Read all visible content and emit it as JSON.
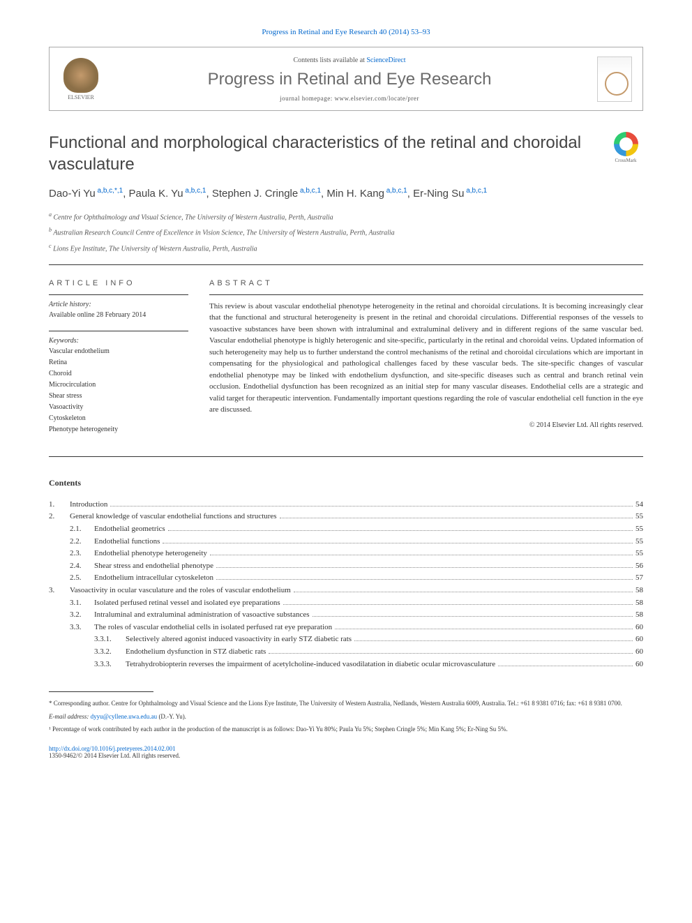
{
  "journal_ref": "Progress in Retinal and Eye Research 40 (2014) 53–93",
  "header": {
    "contents_text": "Contents lists available at ",
    "contents_link": "ScienceDirect",
    "journal_name": "Progress in Retinal and Eye Research",
    "homepage_label": "journal homepage: ",
    "homepage_url": "www.elsevier.com/locate/prer",
    "publisher": "ELSEVIER"
  },
  "crossmark_label": "CrossMark",
  "title": "Functional and morphological characteristics of the retinal and choroidal vasculature",
  "authors": [
    {
      "name": "Dao-Yi Yu",
      "affil": "a,b,c,*,1"
    },
    {
      "name": "Paula K. Yu",
      "affil": "a,b,c,1"
    },
    {
      "name": "Stephen J. Cringle",
      "affil": "a,b,c,1"
    },
    {
      "name": "Min H. Kang",
      "affil": "a,b,c,1"
    },
    {
      "name": "Er-Ning Su",
      "affil": "a,b,c,1"
    }
  ],
  "affiliations": [
    {
      "sup": "a",
      "text": "Centre for Ophthalmology and Visual Science, The University of Western Australia, Perth, Australia"
    },
    {
      "sup": "b",
      "text": "Australian Research Council Centre of Excellence in Vision Science, The University of Western Australia, Perth, Australia"
    },
    {
      "sup": "c",
      "text": "Lions Eye Institute, The University of Western Australia, Perth, Australia"
    }
  ],
  "article_info": {
    "heading": "ARTICLE INFO",
    "history_label": "Article history:",
    "history_text": "Available online 28 February 2014",
    "keywords_label": "Keywords:",
    "keywords": [
      "Vascular endothelium",
      "Retina",
      "Choroid",
      "Microcirculation",
      "Shear stress",
      "Vasoactivity",
      "Cytoskeleton",
      "Phenotype heterogeneity"
    ]
  },
  "abstract": {
    "heading": "ABSTRACT",
    "text": "This review is about vascular endothelial phenotype heterogeneity in the retinal and choroidal circulations. It is becoming increasingly clear that the functional and structural heterogeneity is present in the retinal and choroidal circulations. Differential responses of the vessels to vasoactive substances have been shown with intraluminal and extraluminal delivery and in different regions of the same vascular bed. Vascular endothelial phenotype is highly heterogenic and site-specific, particularly in the retinal and choroidal veins. Updated information of such heterogeneity may help us to further understand the control mechanisms of the retinal and choroidal circulations which are important in compensating for the physiological and pathological challenges faced by these vascular beds. The site-specific changes of vascular endothelial phenotype may be linked with endothelium dysfunction, and site-specific diseases such as central and branch retinal vein occlusion. Endothelial dysfunction has been recognized as an initial step for many vascular diseases. Endothelial cells are a strategic and valid target for therapeutic intervention. Fundamentally important questions regarding the role of vascular endothelial cell function in the eye are discussed.",
    "copyright": "© 2014 Elsevier Ltd. All rights reserved."
  },
  "contents_heading": "Contents",
  "toc": [
    {
      "level": 1,
      "num": "1.",
      "title": "Introduction",
      "page": "54"
    },
    {
      "level": 1,
      "num": "2.",
      "title": "General knowledge of vascular endothelial functions and structures",
      "page": "55"
    },
    {
      "level": 2,
      "num": "2.1.",
      "title": "Endothelial geometrics",
      "page": "55"
    },
    {
      "level": 2,
      "num": "2.2.",
      "title": "Endothelial functions",
      "page": "55"
    },
    {
      "level": 2,
      "num": "2.3.",
      "title": "Endothelial phenotype heterogeneity",
      "page": "55"
    },
    {
      "level": 2,
      "num": "2.4.",
      "title": "Shear stress and endothelial phenotype",
      "page": "56"
    },
    {
      "level": 2,
      "num": "2.5.",
      "title": "Endothelium intracellular cytoskeleton",
      "page": "57"
    },
    {
      "level": 1,
      "num": "3.",
      "title": "Vasoactivity in ocular vasculature and the roles of vascular endothelium",
      "page": "58"
    },
    {
      "level": 2,
      "num": "3.1.",
      "title": "Isolated perfused retinal vessel and isolated eye preparations",
      "page": "58"
    },
    {
      "level": 2,
      "num": "3.2.",
      "title": "Intraluminal and extraluminal administration of vasoactive substances",
      "page": "58"
    },
    {
      "level": 2,
      "num": "3.3.",
      "title": "The roles of vascular endothelial cells in isolated perfused rat eye preparation",
      "page": "60"
    },
    {
      "level": 3,
      "num": "3.3.1.",
      "title": "Selectively altered agonist induced vasoactivity in early STZ diabetic rats",
      "page": "60"
    },
    {
      "level": 3,
      "num": "3.3.2.",
      "title": "Endothelium dysfunction in STZ diabetic rats",
      "page": "60"
    },
    {
      "level": 3,
      "num": "3.3.3.",
      "title": "Tetrahydrobiopterin reverses the impairment of acetylcholine-induced vasodilatation in diabetic ocular microvasculature",
      "page": "60"
    }
  ],
  "footnotes": {
    "corresponding": "* Corresponding author. Centre for Ophthalmology and Visual Science and the Lions Eye Institute, The University of Western Australia, Nedlands, Western Australia 6009, Australia. Tel.: +61 8 9381 0716; fax: +61 8 9381 0700.",
    "email_label": "E-mail address: ",
    "email": "dyyu@cyllene.uwa.edu.au",
    "email_name": " (D.-Y. Yu).",
    "contribution": "¹ Percentage of work contributed by each author in the production of the manuscript is as follows: Dao-Yi Yu 80%; Paula Yu 5%; Stephen Cringle 5%; Min Kang 5%; Er-Ning Su 5%."
  },
  "doi": "http://dx.doi.org/10.1016/j.preteyeres.2014.02.001",
  "issn": "1350-9462/© 2014 Elsevier Ltd. All rights reserved."
}
